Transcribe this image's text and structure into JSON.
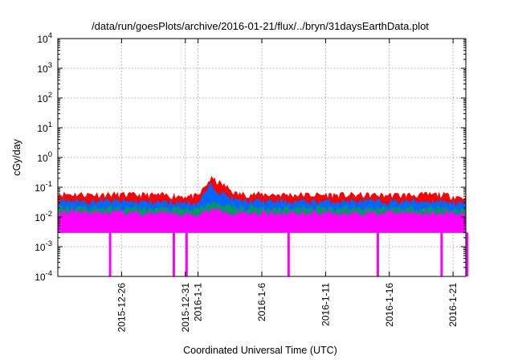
{
  "chart_data": {
    "type": "area",
    "title": "/data/run/goesPlots/archive/2016-01-21/flux/../bryn/31daysEarthData.plot",
    "xlabel": "Coordinated Universal Time (UTC)",
    "ylabel": "cGy/day",
    "y_scale": "log",
    "ylim": [
      0.0001,
      10000
    ],
    "y_ticks": [
      {
        "value": 0.0001,
        "base": "10",
        "exp": "-4"
      },
      {
        "value": 0.001,
        "base": "10",
        "exp": "-3"
      },
      {
        "value": 0.01,
        "base": "10",
        "exp": "-2"
      },
      {
        "value": 0.1,
        "base": "10",
        "exp": "-1"
      },
      {
        "value": 1,
        "base": "10",
        "exp": "0"
      },
      {
        "value": 10,
        "base": "10",
        "exp": "1"
      },
      {
        "value": 100,
        "base": "10",
        "exp": "2"
      },
      {
        "value": 1000,
        "base": "10",
        "exp": "3"
      },
      {
        "value": 10000,
        "base": "10",
        "exp": "4"
      }
    ],
    "xlim": [
      "2015-12-21",
      "2016-01-22"
    ],
    "x_ticks": [
      "2015-12-26",
      "2015-12-31",
      "2016-1-1",
      "2016-1-6",
      "2016-1-11",
      "2016-1-16",
      "2016-1-21"
    ],
    "x_tick_dates": [
      "2015-12-26",
      "2015-12-31",
      "2016-01-01",
      "2016-01-06",
      "2016-01-11",
      "2016-01-16",
      "2016-01-21"
    ],
    "grid": true,
    "legend": "none",
    "series": [
      {
        "color": "#ff0000",
        "x": [
          "2015-12-21",
          "2015-12-25",
          "2015-12-29",
          "2016-01-01",
          "2016-01-02",
          "2016-01-03",
          "2016-01-04",
          "2016-01-08",
          "2016-01-12",
          "2016-01-16",
          "2016-01-20",
          "2016-01-22"
        ],
        "values": [
          0.06,
          0.058,
          0.055,
          0.05,
          0.2,
          0.12,
          0.06,
          0.057,
          0.056,
          0.055,
          0.058,
          0.045
        ]
      },
      {
        "color": "#0066ff",
        "x": [
          "2015-12-21",
          "2015-12-25",
          "2015-12-29",
          "2016-01-01",
          "2016-01-02",
          "2016-01-03",
          "2016-01-04",
          "2016-01-08",
          "2016-01-12",
          "2016-01-16",
          "2016-01-20",
          "2016-01-22"
        ],
        "values": [
          0.035,
          0.034,
          0.032,
          0.03,
          0.12,
          0.06,
          0.035,
          0.033,
          0.034,
          0.033,
          0.035,
          0.028
        ]
      },
      {
        "color": "#009966",
        "x": [
          "2015-12-21",
          "2015-12-25",
          "2015-12-29",
          "2016-01-01",
          "2016-01-02",
          "2016-01-03",
          "2016-01-04",
          "2016-01-08",
          "2016-01-12",
          "2016-01-16",
          "2016-01-20",
          "2016-01-22"
        ],
        "values": [
          0.02,
          0.02,
          0.019,
          0.018,
          0.03,
          0.025,
          0.02,
          0.02,
          0.02,
          0.02,
          0.02,
          0.017
        ]
      },
      {
        "color": "#ff00ff",
        "x": [
          "2015-12-21",
          "2015-12-25",
          "2015-12-29",
          "2016-01-01",
          "2016-01-02",
          "2016-01-03",
          "2016-01-04",
          "2016-01-08",
          "2016-01-12",
          "2016-01-16",
          "2016-01-20",
          "2016-01-22"
        ],
        "values": [
          0.015,
          0.014,
          0.013,
          0.012,
          0.018,
          0.016,
          0.014,
          0.014,
          0.014,
          0.014,
          0.014,
          0.012
        ],
        "floor": 0.003
      }
    ],
    "dropouts": [
      "2015-12-25",
      "2015-12-30",
      "2015-12-31",
      "2016-01-08",
      "2016-01-15",
      "2016-01-20",
      "2016-01-22"
    ],
    "dropout_value": 0.0001
  }
}
